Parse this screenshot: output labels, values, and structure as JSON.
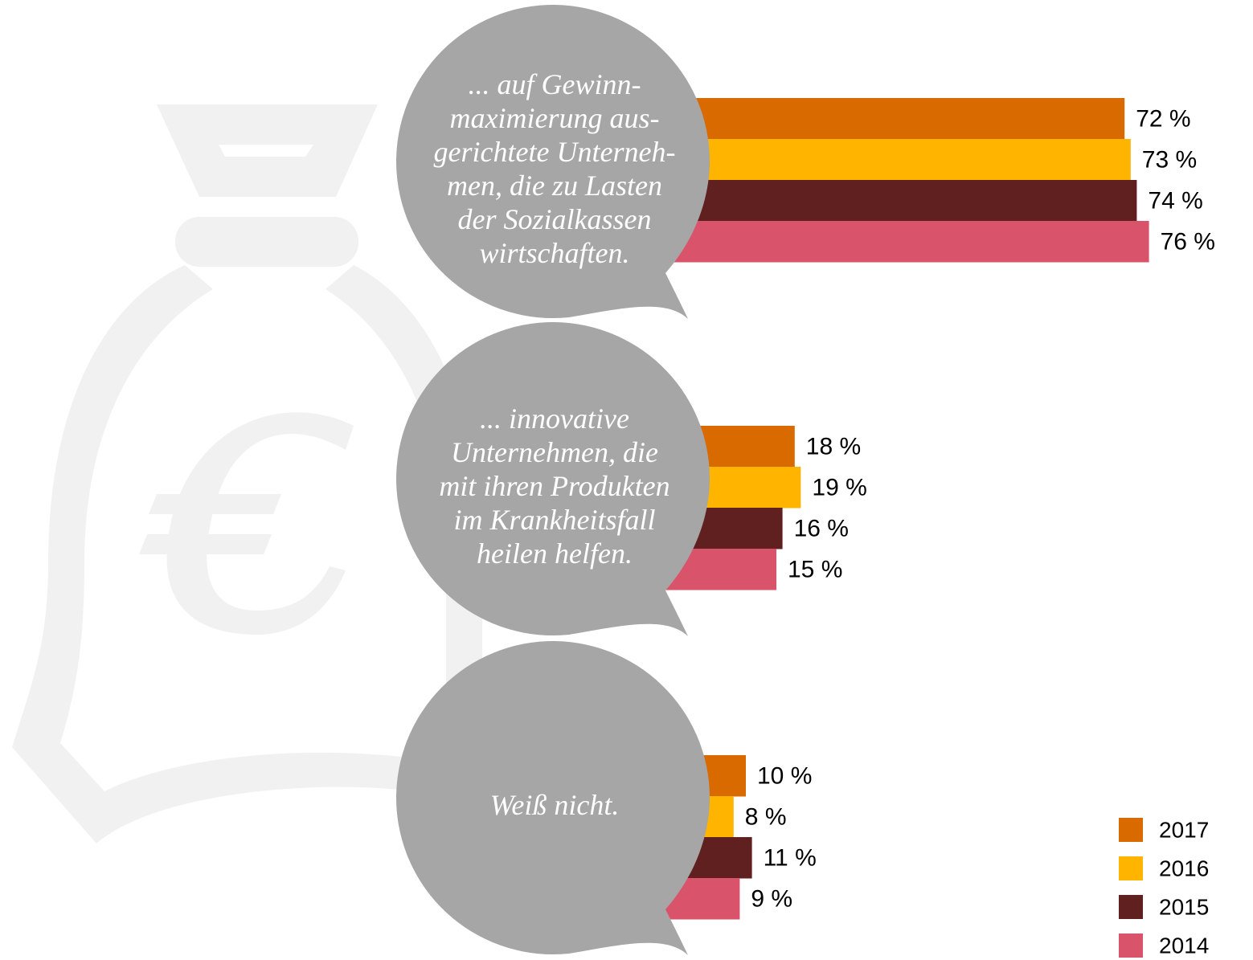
{
  "chart_data": {
    "type": "bar",
    "orientation": "horizontal",
    "categories": [
      "... auf Gewinn-\nmaximierung aus-\ngerichtete Unterneh-\nmen, die zu Lasten\nder Sozialkassen\nwirtschaften.",
      "... innovative\nUnternehmen, die\nmit ihren Produkten\nim Krankheitsfall\nheilen helfen.",
      "Weiß nicht."
    ],
    "series": [
      {
        "name": "2017",
        "color": "#d96a00",
        "values": [
          72,
          18,
          10
        ],
        "value_labels": [
          "72 %",
          "18 %",
          "10 %"
        ]
      },
      {
        "name": "2016",
        "color": "#ffb400",
        "values": [
          73,
          19,
          8
        ],
        "value_labels": [
          "73 %",
          "19 %",
          "8 %"
        ]
      },
      {
        "name": "2015",
        "color": "#602020",
        "values": [
          74,
          16,
          11
        ],
        "value_labels": [
          "74 %",
          "16 %",
          "11 %"
        ]
      },
      {
        "name": "2014",
        "color": "#d9546a",
        "values": [
          76,
          15,
          9
        ],
        "value_labels": [
          "76 %",
          "15 %",
          "9 %"
        ]
      }
    ],
    "legend": "bottom-right"
  }
}
